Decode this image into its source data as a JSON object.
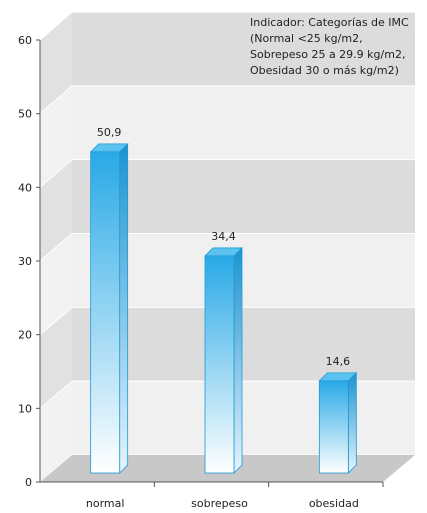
{
  "chart_data": {
    "type": "bar",
    "categories": [
      "normal",
      "sobrepeso",
      "obesidad"
    ],
    "values": [
      50.9,
      34.4,
      14.6
    ],
    "value_labels": [
      "50,9",
      "34,4",
      "14,6"
    ],
    "ylim": [
      0,
      60
    ],
    "yticks": [
      "0",
      "10",
      "20",
      "30",
      "40",
      "50",
      "60"
    ],
    "annotation": [
      "Indicador: Categorías de IMC",
      "(Normal <25 kg/m2,",
      "Sobrepeso 25 a 29.9 kg/m2,",
      "Obesidad 30 o más kg/m2)"
    ],
    "grid": true,
    "colors": {
      "bar_top": "#29a9e6",
      "bar_bottom": "#ffffff",
      "bar_edge": "#1b9ad6",
      "band_dark": "#dcdcdc",
      "band_light": "#f0f0f0"
    }
  }
}
